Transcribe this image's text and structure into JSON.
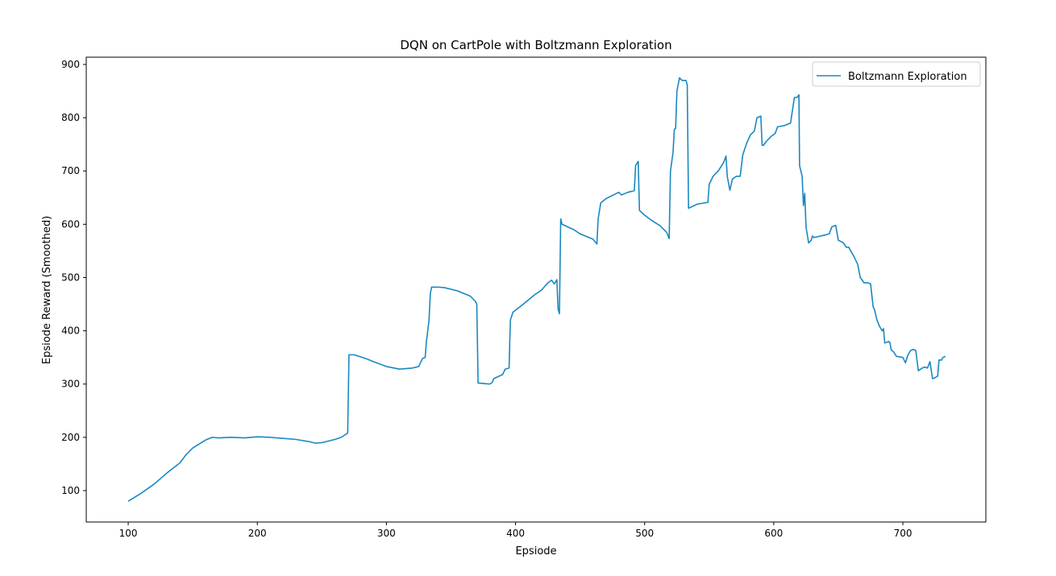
{
  "chart_data": {
    "type": "line",
    "title": "DQN on CartPole with Boltzmann Exploration",
    "xlabel": "Epsiode",
    "ylabel": "Epsiode Reward (Smoothed)",
    "xlim": [
      67.5,
      764.3
    ],
    "ylim": [
      41.0,
      913.6
    ],
    "xticks": [
      100,
      200,
      300,
      400,
      500,
      600,
      700
    ],
    "yticks": [
      100,
      200,
      300,
      400,
      500,
      600,
      700,
      800,
      900
    ],
    "legend": "upper right",
    "x": [
      100,
      110,
      120,
      130,
      140,
      145,
      150,
      160,
      165,
      170,
      180,
      190,
      200,
      210,
      220,
      230,
      240,
      245,
      250,
      260,
      265,
      270,
      271,
      275,
      285,
      290,
      300,
      310,
      315,
      320,
      325,
      328,
      330,
      331,
      332,
      333,
      334,
      335,
      340,
      345,
      355,
      365,
      369,
      370,
      371,
      375,
      380,
      382,
      383,
      390,
      392,
      395,
      396,
      398,
      405,
      410,
      415,
      420,
      425,
      428,
      430,
      432,
      433,
      434,
      435,
      436,
      445,
      450,
      460,
      463,
      464,
      466,
      470,
      480,
      482,
      487,
      492,
      493,
      495,
      496,
      500,
      505,
      512,
      517,
      519,
      520,
      522,
      523,
      524,
      525,
      527,
      529,
      532,
      533,
      534,
      541,
      549,
      550,
      553,
      557,
      561,
      563,
      564,
      566,
      568,
      571,
      574,
      576,
      579,
      582,
      585,
      587,
      590,
      591,
      592,
      594,
      598,
      601,
      603,
      608,
      613,
      616,
      618,
      619.5,
      620,
      622,
      623,
      624,
      625,
      627,
      629,
      630,
      631,
      640,
      643,
      645,
      648,
      650,
      654,
      656,
      658,
      662,
      665,
      667,
      670,
      673,
      675,
      677,
      678,
      680,
      682,
      684,
      685,
      686,
      689,
      690,
      691,
      693,
      695,
      700,
      702,
      704,
      706,
      708,
      710,
      712,
      715,
      717,
      719,
      721,
      723,
      725,
      727,
      728,
      730,
      731,
      733
    ],
    "series": [
      {
        "name": "Boltzmann Exploration",
        "color": "#1a88c0",
        "values": [
          80,
          95,
          112,
          133,
          152,
          168,
          180,
          195,
          200,
          199,
          200,
          199,
          201,
          200,
          198,
          196,
          192,
          189,
          190,
          196,
          200,
          208,
          355,
          355,
          347,
          342,
          333,
          328,
          329,
          330,
          333,
          348,
          350,
          380,
          400,
          420,
          470,
          482,
          482,
          481,
          475,
          465,
          455,
          450,
          302,
          301,
          300,
          303,
          310,
          318,
          328,
          330,
          420,
          435,
          448,
          458,
          468,
          476,
          490,
          495,
          488,
          496,
          440,
          432,
          610,
          600,
          590,
          582,
          572,
          563,
          610,
          640,
          648,
          660,
          655,
          660,
          663,
          710,
          718,
          626,
          617,
          608,
          597,
          585,
          573,
          700,
          735,
          778,
          780,
          850,
          875,
          870,
          870,
          862,
          630,
          638,
          641,
          675,
          690,
          700,
          715,
          728,
          690,
          664,
          685,
          690,
          690,
          730,
          752,
          768,
          775,
          800,
          803,
          748,
          748,
          755,
          765,
          770,
          783,
          785,
          790,
          838,
          838,
          843,
          710,
          690,
          635,
          658,
          595,
          565,
          570,
          578,
          575,
          580,
          582,
          595,
          598,
          570,
          565,
          557,
          557,
          540,
          525,
          500,
          490,
          490,
          488,
          445,
          440,
          420,
          408,
          400,
          404,
          377,
          380,
          378,
          364,
          360,
          352,
          350,
          340,
          355,
          363,
          365,
          363,
          325,
          330,
          332,
          330,
          342,
          310,
          312,
          315,
          345,
          345,
          350,
          352
        ]
      }
    ]
  }
}
